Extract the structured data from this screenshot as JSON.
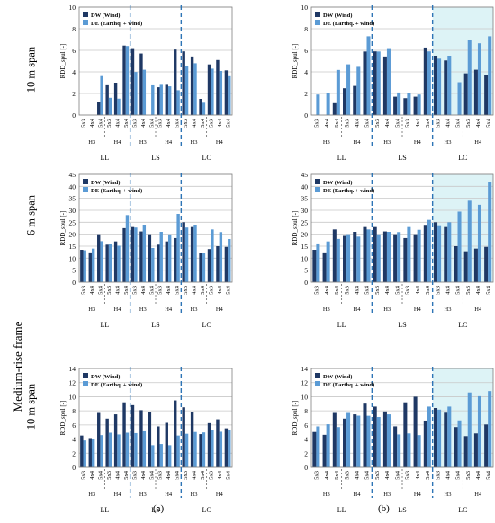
{
  "figure": {
    "frame_label": "Medium-rise frame",
    "row_labels": [
      "10 m span",
      "6 m span",
      "10 m span"
    ],
    "column_labels": [
      "(a)",
      "(b)"
    ],
    "ylabel": "RDD_spul [-]",
    "legend": [
      "DW (Wind)",
      "DE (Earthq. + wind)"
    ],
    "group_labels": [
      "LL",
      "LS",
      "LC"
    ],
    "sub_labels": [
      "H3",
      "H4"
    ],
    "categories": [
      "5x3",
      "4x4",
      "5x4",
      "5x3",
      "4x4",
      "5x4"
    ],
    "colors": {
      "dw": "#1f3864",
      "de": "#5b9bd5",
      "shade": "#ddf3f6",
      "grid": "#c8c8c8",
      "divider": "#2e75b6"
    }
  },
  "chart_data": [
    {
      "type": "bar",
      "position": "row1-col-a",
      "ylim": [
        0,
        10
      ],
      "yticks": [
        0,
        2,
        4,
        6,
        8,
        10
      ],
      "groups": [
        "LL",
        "LS",
        "LC"
      ],
      "series": [
        {
          "name": "DW (Wind)",
          "values": [
            0,
            1.2,
            3.0,
            7.0,
            6.2,
            0,
            2.8,
            6.6,
            5.9,
            1.5,
            5.1,
            4.5
          ]
        },
        {
          "name": "DE (Earthq. + wind)",
          "values": [
            0,
            3.8,
            1.6,
            6.4,
            4.2,
            2.9,
            2.8,
            2.3,
            4.8,
            1.2,
            4.3,
            3.6
          ]
        }
      ]
    },
    {
      "type": "bar",
      "position": "row1-col-b",
      "ylim": [
        0,
        10
      ],
      "yticks": [
        0,
        2,
        4,
        6,
        8,
        10
      ],
      "groups": [
        "LL",
        "LS",
        "LC"
      ],
      "series": [
        {
          "name": "DW (Wind)",
          "values": [
            0,
            1.1,
            2.7,
            6.4,
            5.9,
            1.7,
            1.7,
            6.8,
            5.5,
            0,
            4.2,
            4.0
          ]
        },
        {
          "name": "DE (Earthq. + wind)",
          "values": [
            2.0,
            4.4,
            4.7,
            7.3,
            6.2,
            2.2,
            2.0,
            5.9,
            5.5,
            3.2,
            7.0,
            7.3
          ]
        }
      ]
    },
    {
      "type": "bar",
      "position": "row2-col-a",
      "ylim": [
        0,
        45
      ],
      "yticks": [
        0,
        5,
        10,
        15,
        20,
        25,
        30,
        35,
        40,
        45
      ],
      "groups": [
        "LL",
        "LS",
        "LC"
      ],
      "series": [
        {
          "name": "DW (Wind)",
          "values": [
            13.5,
            20.0,
            17.0,
            24.5,
            23.0,
            20.0,
            17.0,
            20.0,
            25.0,
            12.0,
            15.0,
            16.0
          ]
        },
        {
          "name": "DE (Earthq. + wind)",
          "values": [
            14.0,
            18.0,
            16.0,
            28.0,
            24.0,
            15.0,
            21.0,
            28.5,
            24.0,
            13.0,
            22.0,
            18.0
          ]
        }
      ]
    },
    {
      "type": "bar",
      "position": "row2-col-b",
      "ylim": [
        0,
        45
      ],
      "yticks": [
        0,
        5,
        10,
        15,
        20,
        25,
        30,
        35,
        40,
        45
      ],
      "groups": [
        "LL",
        "LS",
        "LC"
      ],
      "series": [
        {
          "name": "DW (Wind)",
          "values": [
            13.5,
            22.0,
            21.0,
            25.0,
            23.0,
            20.0,
            20.0,
            26.0,
            25.0,
            15.0,
            14.0,
            16.0
          ]
        },
        {
          "name": "DE (Earthq. + wind)",
          "values": [
            17.0,
            19.0,
            20.0,
            22.0,
            21.0,
            22.0,
            23.0,
            26.0,
            25.0,
            31.0,
            34.0,
            42.0
          ]
        }
      ]
    },
    {
      "type": "bar",
      "position": "row3-col-a",
      "ylim": [
        0,
        14
      ],
      "yticks": [
        0,
        2,
        4,
        6,
        8,
        10,
        12,
        14
      ],
      "groups": [
        "LL",
        "LS",
        "LC"
      ],
      "series": [
        {
          "name": "DW (Wind)",
          "values": [
            4.5,
            7.7,
            7.5,
            10.0,
            8.8,
            7.8,
            6.3,
            10.3,
            8.5,
            4.7,
            6.8,
            6.0
          ]
        },
        {
          "name": "DE (Earthq. + wind)",
          "values": [
            4.0,
            4.8,
            4.9,
            4.9,
            5.1,
            3.3,
            3.3,
            4.5,
            5.0,
            5.2,
            5.3,
            5.3
          ]
        }
      ]
    },
    {
      "type": "bar",
      "position": "row3-col-b",
      "ylim": [
        0,
        14
      ],
      "yticks": [
        0,
        2,
        4,
        6,
        8,
        10,
        12,
        14
      ],
      "groups": [
        "LL",
        "LS",
        "LC"
      ],
      "series": [
        {
          "name": "DW (Wind)",
          "values": [
            5.0,
            7.7,
            7.5,
            9.8,
            8.6,
            5.8,
            10.0,
            7.2,
            8.4,
            5.7,
            4.8,
            6.6
          ]
        },
        {
          "name": "DE (Earthq. + wind)",
          "values": [
            6.1,
            6.0,
            7.7,
            7.3,
            7.5,
            4.9,
            4.8,
            8.6,
            8.6,
            7.0,
            10.6,
            10.8
          ]
        }
      ]
    }
  ]
}
